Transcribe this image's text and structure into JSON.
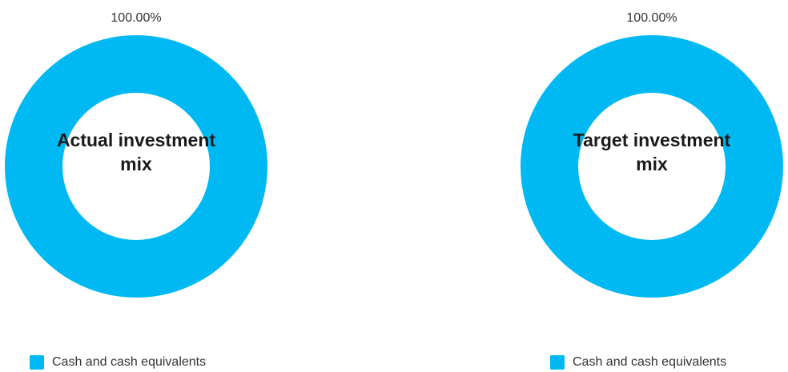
{
  "chart_data": [
    {
      "type": "pie",
      "variant": "donut",
      "center_text": "Actual investment mix",
      "slices": [
        {
          "label": "Cash and cash equivalents",
          "value": 100.0,
          "value_label": "100.00%",
          "color": "#00b9f2"
        }
      ],
      "legend": [
        {
          "label": "Cash and cash equivalents",
          "color": "#00b9f2"
        }
      ],
      "legend_position": "bottom-left"
    },
    {
      "type": "pie",
      "variant": "donut",
      "center_text": "Target investment mix",
      "slices": [
        {
          "label": "Cash and cash equivalents",
          "value": 100.0,
          "value_label": "100.00%",
          "color": "#00b9f2"
        }
      ],
      "legend": [
        {
          "label": "Cash and cash equivalents",
          "color": "#00b9f2"
        }
      ],
      "legend_position": "bottom-left"
    }
  ]
}
